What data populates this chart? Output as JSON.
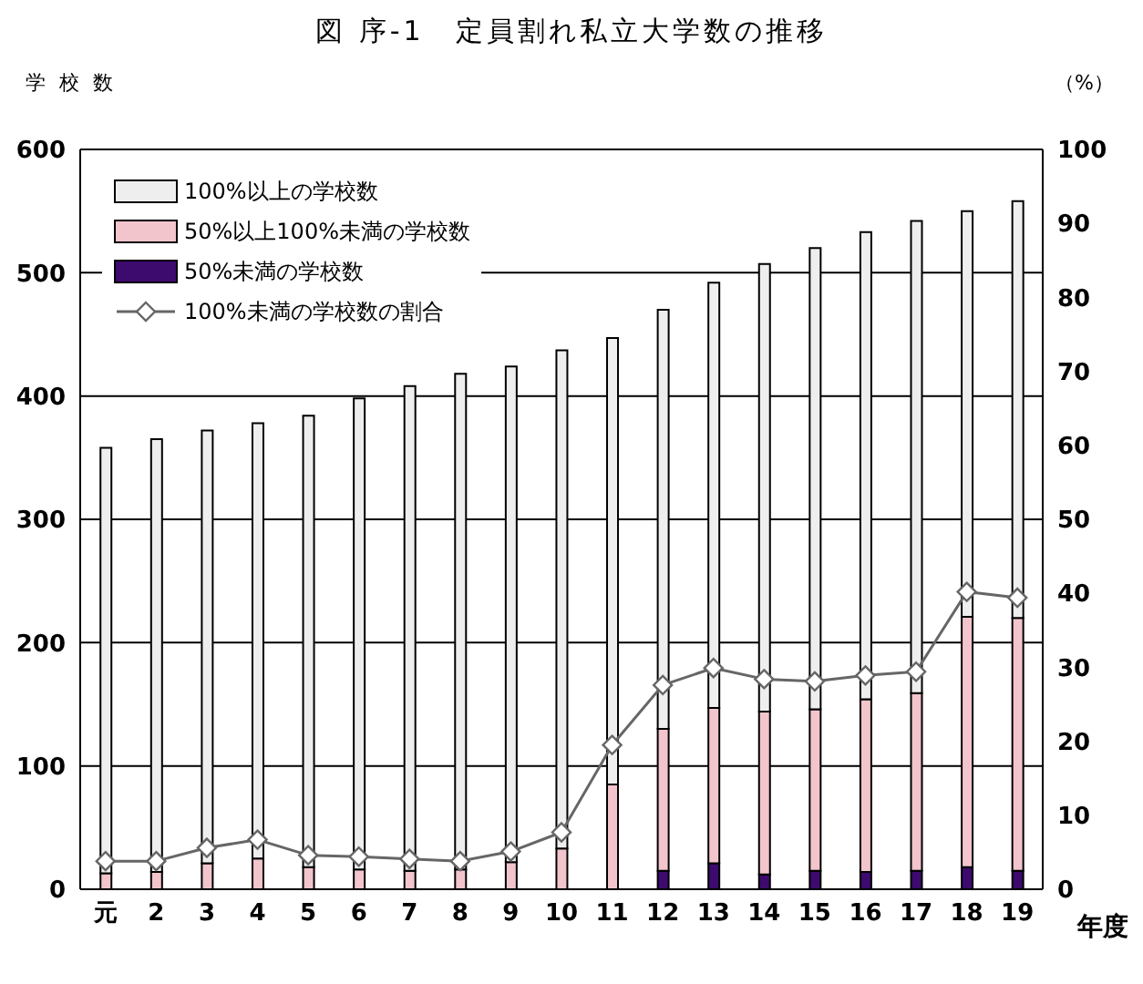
{
  "chart_data": {
    "type": "bar",
    "title": "図 序-1　定員割れ私立大学数の推移",
    "annotations": [
      "学 校 数"
    ],
    "y2label": "（%）",
    "xlabel": "年度",
    "categories": [
      "元",
      "2",
      "3",
      "4",
      "5",
      "6",
      "7",
      "8",
      "9",
      "10",
      "11",
      "12",
      "13",
      "14",
      "15",
      "16",
      "17",
      "18",
      "19"
    ],
    "stacked": true,
    "series": [
      {
        "name": "50%未満の学校数",
        "color": "#3d0a6e",
        "values": [
          0,
          0,
          0,
          0,
          0,
          null,
          null,
          0,
          0,
          null,
          null,
          15,
          21,
          12,
          15,
          14,
          15,
          18,
          15
        ]
      },
      {
        "name": "50%以上100%未満の学校数",
        "color": "#f2c4cc",
        "values": [
          13,
          14,
          21,
          25,
          18,
          16,
          15,
          16,
          22,
          33,
          85,
          115,
          126,
          132,
          131,
          140,
          144,
          203,
          205
        ]
      },
      {
        "name": "100%以上の学校数",
        "color": "#eeeeee",
        "values": [
          345,
          351,
          351,
          353,
          366,
          382,
          393,
          402,
          402,
          404,
          362,
          340,
          345,
          363,
          374,
          379,
          383,
          329,
          338
        ]
      },
      {
        "name": "100%未満の学校数の割合",
        "type": "line",
        "axis": "y2",
        "color": "#666666",
        "marker": "diamond",
        "values": [
          3.8,
          3.8,
          5.6,
          6.7,
          4.6,
          4.4,
          4.1,
          3.8,
          5.1,
          7.7,
          19.5,
          27.6,
          29.9,
          28.4,
          28.1,
          28.9,
          29.4,
          40.2,
          39.4
        ]
      }
    ],
    "ylim": [
      0,
      600
    ],
    "yticks": [
      0,
      100,
      200,
      300,
      400,
      500,
      600
    ],
    "y2lim": [
      0,
      100
    ],
    "y2ticks": [
      0,
      10,
      20,
      30,
      40,
      50,
      60,
      70,
      80,
      90,
      100
    ],
    "grid": "y",
    "legend": "top left"
  }
}
